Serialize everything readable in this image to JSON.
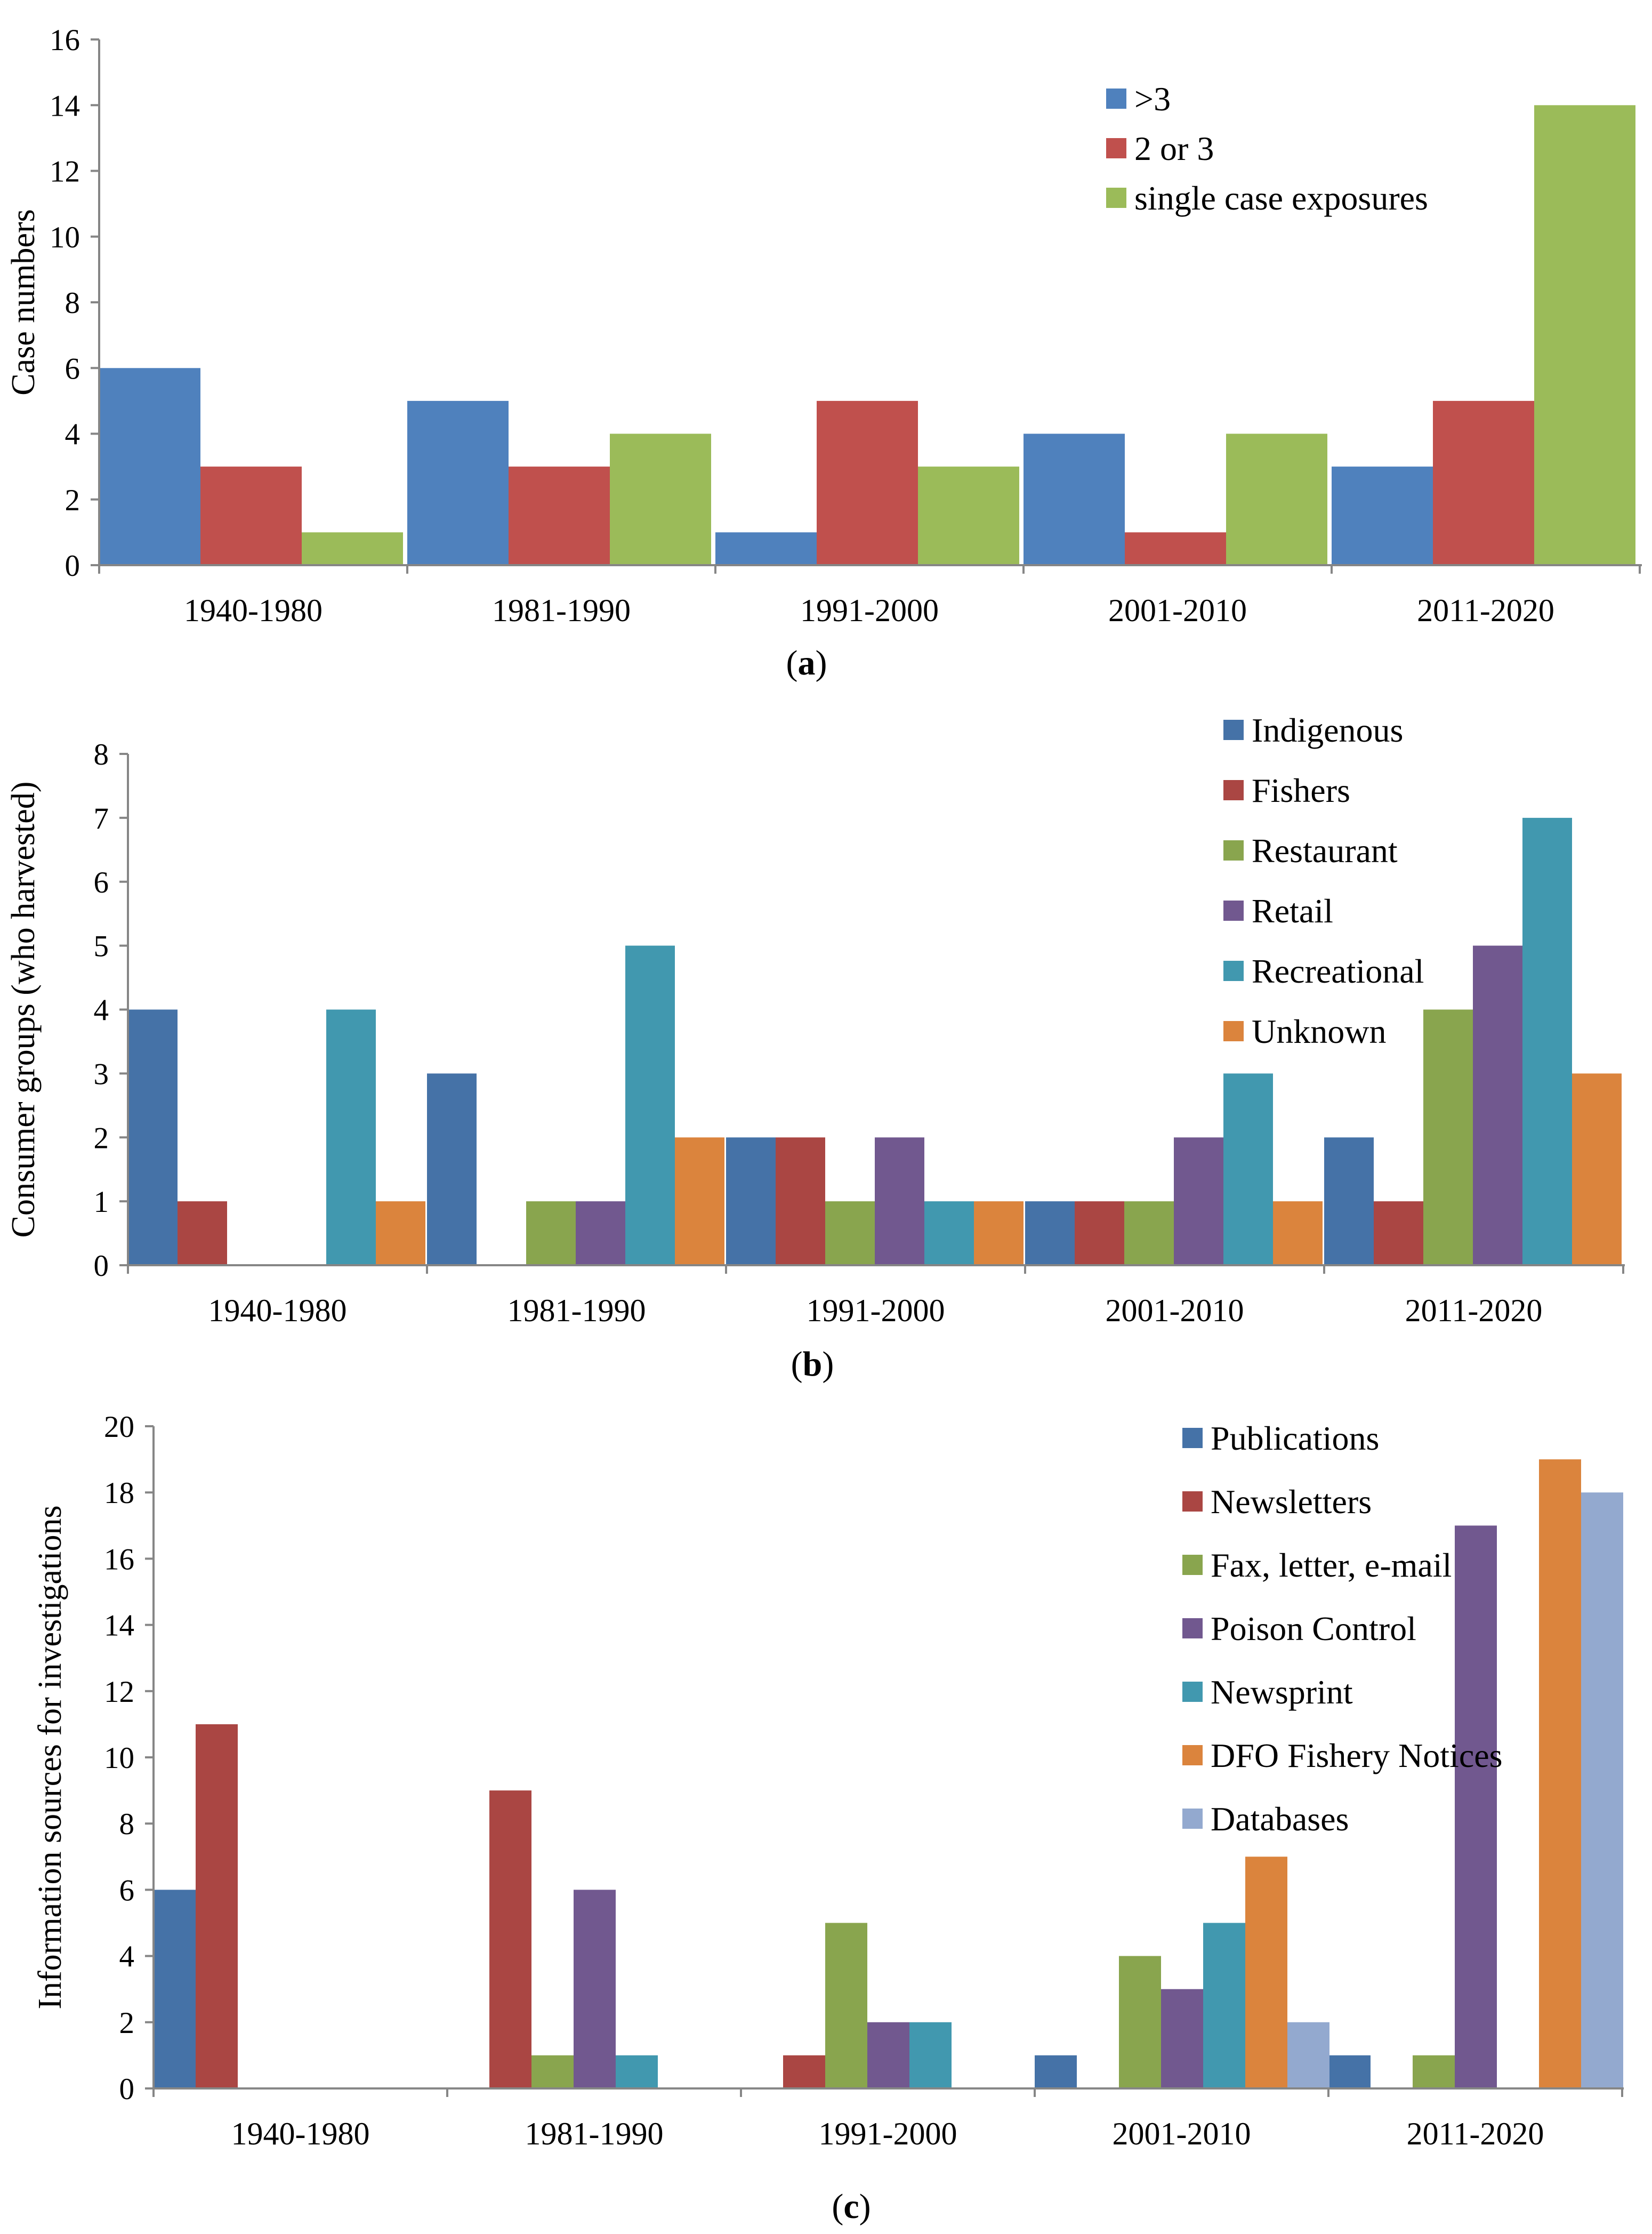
{
  "colors": {
    "blue": "#4F81BD",
    "red": "#C0504D",
    "green": "#9BBB59",
    "dblue": "#4572A7",
    "dred": "#AA4643",
    "dgreen": "#89A54E",
    "purple": "#71588F",
    "teal": "#4198AF",
    "orange": "#DB843D",
    "lightblue": "#93A9CF"
  },
  "chart_data": [
    {
      "type": "bar",
      "panel_label": "a",
      "title": "",
      "xlabel": "",
      "ylabel": "Case numbers",
      "ylim": [
        0,
        16
      ],
      "ytick_step": 2,
      "grid": false,
      "legend_position": "top-right",
      "categories": [
        "1940-1980",
        "1981-1990",
        "1991-2000",
        "2001-2010",
        "2011-2020"
      ],
      "series": [
        {
          "name": ">3",
          "color_key": "blue",
          "values": [
            6,
            5,
            1,
            4,
            3
          ]
        },
        {
          "name": "2 or 3",
          "color_key": "red",
          "values": [
            3,
            3,
            5,
            1,
            5
          ]
        },
        {
          "name": "single case exposures",
          "color_key": "green",
          "values": [
            1,
            4,
            3,
            4,
            14
          ]
        }
      ]
    },
    {
      "type": "bar",
      "panel_label": "b",
      "title": "",
      "xlabel": "",
      "ylabel": "Consumer groups (who harvested)",
      "ylim": [
        0,
        8
      ],
      "ytick_step": 1,
      "grid": false,
      "legend_position": "top-right",
      "categories": [
        "1940-1980",
        "1981-1990",
        "1991-2000",
        "2001-2010",
        "2011-2020"
      ],
      "series": [
        {
          "name": "Indigenous",
          "color_key": "dblue",
          "values": [
            4,
            3,
            2,
            1,
            2
          ]
        },
        {
          "name": "Fishers",
          "color_key": "dred",
          "values": [
            1,
            0,
            2,
            1,
            1
          ]
        },
        {
          "name": "Restaurant",
          "color_key": "dgreen",
          "values": [
            0,
            1,
            1,
            1,
            4
          ]
        },
        {
          "name": "Retail",
          "color_key": "purple",
          "values": [
            0,
            1,
            2,
            2,
            5
          ]
        },
        {
          "name": "Recreational",
          "color_key": "teal",
          "values": [
            4,
            5,
            1,
            3,
            7
          ]
        },
        {
          "name": "Unknown",
          "color_key": "orange",
          "values": [
            1,
            2,
            1,
            1,
            3
          ]
        }
      ]
    },
    {
      "type": "bar",
      "panel_label": "c",
      "title": "",
      "xlabel": "",
      "ylabel": "Information sources for investigations",
      "ylim": [
        0,
        20
      ],
      "ytick_step": 2,
      "grid": false,
      "legend_position": "top-right",
      "categories": [
        "1940-1980",
        "1981-1990",
        "1991-2000",
        "2001-2010",
        "2011-2020"
      ],
      "series": [
        {
          "name": "Publications",
          "color_key": "dblue",
          "values": [
            6,
            0,
            0,
            1,
            1
          ]
        },
        {
          "name": "Newsletters",
          "color_key": "dred",
          "values": [
            11,
            9,
            1,
            0,
            0
          ]
        },
        {
          "name": "Fax, letter, e-mail",
          "color_key": "dgreen",
          "values": [
            0,
            1,
            5,
            4,
            1
          ]
        },
        {
          "name": "Poison Control",
          "color_key": "purple",
          "values": [
            0,
            6,
            2,
            3,
            17
          ]
        },
        {
          "name": "Newsprint",
          "color_key": "teal",
          "values": [
            0,
            1,
            2,
            5,
            0
          ]
        },
        {
          "name": "DFO Fishery Notices",
          "color_key": "orange",
          "values": [
            0,
            0,
            0,
            7,
            19
          ]
        },
        {
          "name": "Databases",
          "color_key": "lightblue",
          "values": [
            0,
            0,
            0,
            2,
            18
          ]
        }
      ]
    }
  ]
}
